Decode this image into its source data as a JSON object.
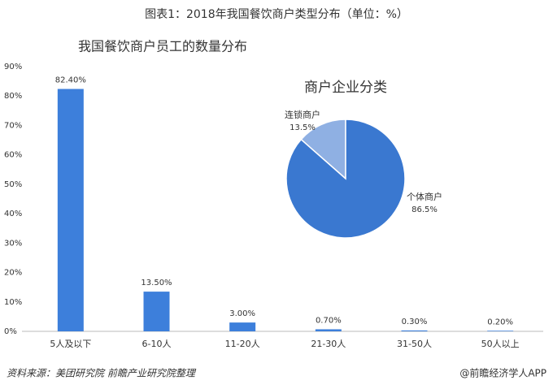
{
  "header": {
    "title": "图表1：2018年我国餐饮商户类型分布（单位：%）"
  },
  "footer": {
    "source": "资料来源：美团研究院 前瞻产业研究院整理",
    "brand": "@前瞻经济学人APP"
  },
  "chart_data": [
    {
      "type": "bar",
      "title": "我国餐饮商户员工的数量分布",
      "categories": [
        "5人及以下",
        "6-10人",
        "11-20人",
        "21-30人",
        "31-50人",
        "50人以上"
      ],
      "values": [
        82.4,
        13.5,
        3.0,
        0.7,
        0.3,
        0.2
      ],
      "value_labels": [
        "82.40%",
        "13.50%",
        "3.00%",
        "0.70%",
        "0.30%",
        "0.20%"
      ],
      "color": "#3d7fdb",
      "ylim": [
        0,
        90
      ],
      "yticks": [
        {
          "value": 0,
          "label": "0%"
        },
        {
          "value": 10,
          "label": "10%"
        },
        {
          "value": 20,
          "label": "20%"
        },
        {
          "value": 30,
          "label": "30%"
        },
        {
          "value": 40,
          "label": "40%"
        },
        {
          "value": 50,
          "label": "50%"
        },
        {
          "value": 60,
          "label": "60%"
        },
        {
          "value": 70,
          "label": "70%"
        },
        {
          "value": 80,
          "label": "80%"
        },
        {
          "value": 90,
          "label": "90%"
        }
      ],
      "grid": false
    },
    {
      "type": "pie",
      "title": "商户企业分类",
      "categories": [
        "连锁商户",
        "个体商户"
      ],
      "values": [
        13.5,
        86.5
      ],
      "value_labels": [
        "13.5%",
        "86.5%"
      ],
      "colors": [
        "#8fb0e3",
        "#3a78d0"
      ]
    }
  ]
}
